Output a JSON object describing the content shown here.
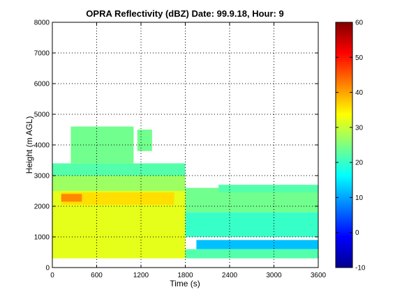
{
  "chart_data": {
    "type": "heatmap",
    "title": "OPRA Reflectivity (dBZ)  Date: 99.9.18, Hour: 9",
    "xlabel": "Time (s)",
    "ylabel": "Height (m AGL)",
    "xlim": [
      0,
      3600
    ],
    "ylim": [
      0,
      8000
    ],
    "xticks": [
      "0",
      "600",
      "1200",
      "1800",
      "2400",
      "3000",
      "3600"
    ],
    "yticks": [
      "0",
      "1000",
      "2000",
      "3000",
      "4000",
      "5000",
      "6000",
      "7000",
      "8000"
    ],
    "grid": true,
    "colorbar": {
      "range": [
        -10,
        60
      ],
      "ticks": [
        "-10",
        "0",
        "10",
        "20",
        "30",
        "40",
        "50",
        "60"
      ],
      "colormap": "jet"
    },
    "regions": [
      {
        "t": [
          0,
          1800
        ],
        "h": [
          300,
          2500
        ],
        "dbz": 32
      },
      {
        "t": [
          120,
          1650
        ],
        "h": [
          2050,
          2450
        ],
        "dbz": 36
      },
      {
        "t": [
          120,
          400
        ],
        "h": [
          2150,
          2400
        ],
        "dbz": 42
      },
      {
        "t": [
          0,
          1800
        ],
        "h": [
          2500,
          3000
        ],
        "dbz": 27
      },
      {
        "t": [
          0,
          1800
        ],
        "h": [
          3000,
          3400
        ],
        "dbz": 22
      },
      {
        "t": [
          250,
          1100
        ],
        "h": [
          3400,
          4600
        ],
        "dbz": 24
      },
      {
        "t": [
          1150,
          1350
        ],
        "h": [
          3800,
          4500
        ],
        "dbz": 24
      },
      {
        "t": [
          1800,
          3600
        ],
        "h": [
          1800,
          2600
        ],
        "dbz": 24
      },
      {
        "t": [
          1800,
          3600
        ],
        "h": [
          1000,
          1800
        ],
        "dbz": 20
      },
      {
        "t": [
          1950,
          3600
        ],
        "h": [
          600,
          900
        ],
        "dbz": 12
      },
      {
        "t": [
          1800,
          3600
        ],
        "h": [
          300,
          600
        ],
        "dbz": 22
      },
      {
        "t": [
          2250,
          3600
        ],
        "h": [
          2450,
          2700
        ],
        "dbz": 22
      }
    ]
  }
}
